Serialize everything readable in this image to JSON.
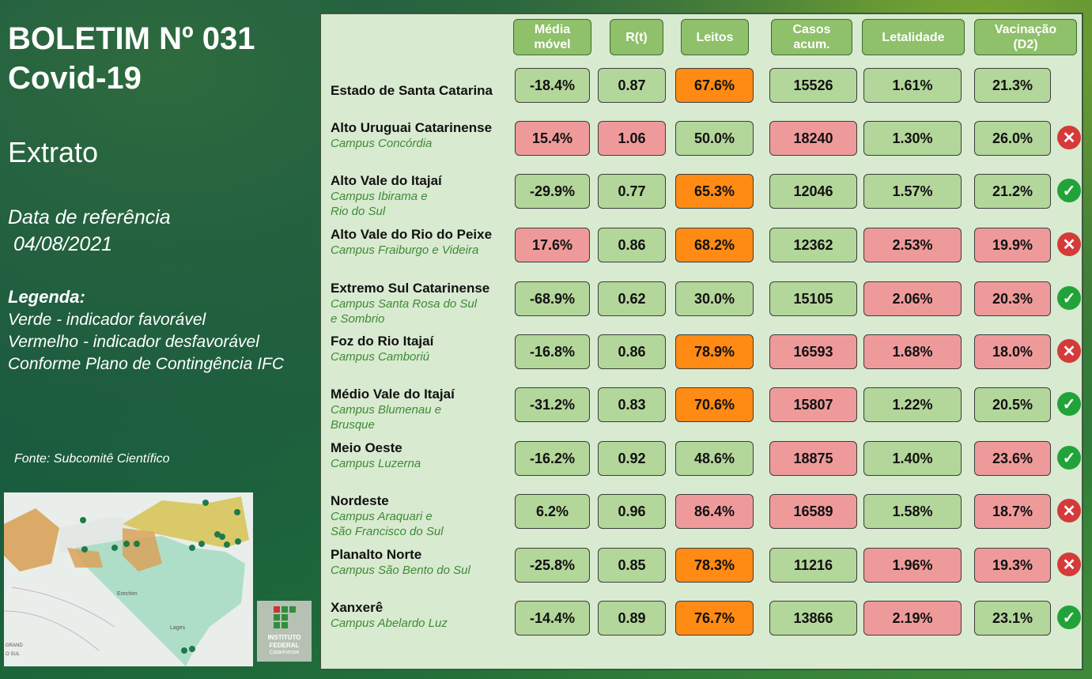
{
  "title_line1": "BOLETIM Nº 031",
  "title_line2": "Covid-19",
  "subtitle": "Extrato",
  "ref_label": "Data de referência",
  "ref_date": " 04/08/2021",
  "legend": {
    "title": "Legenda:",
    "line1": "Verde - indicador favorável",
    "line2": "Vermelho - indicador desfavorável",
    "line3": "Conforme Plano de Contingência IFC"
  },
  "source": "Fonte: Subcomitê Científico",
  "logo": {
    "line1": "INSTITUTO",
    "line2": "FEDERAL",
    "line3": "Catarinense"
  },
  "map_labels": {
    "city1": "Erechim",
    "city2": "Lages",
    "city3": "GRAND",
    "city4": "O SUL"
  },
  "headers": [
    "Média\nmóvel",
    "R(t)",
    "Leitos",
    "Casos\nacum.",
    "Letalidade",
    "Vacinação\n(D2)"
  ],
  "colors": {
    "green": "#b3d69a",
    "red": "#ef9a9a",
    "orange": "#ff8a14",
    "header": "#8fc06a"
  },
  "rows": [
    {
      "name": "Estado de Santa Catarina",
      "campus": "",
      "values": [
        "-18.4%",
        "0.87",
        "67.6%",
        "15526",
        "1.61%",
        "21.3%"
      ],
      "colors": [
        "g",
        "g",
        "o",
        "g",
        "g",
        "g"
      ],
      "status": ""
    },
    {
      "name": "Alto Uruguai Catarinense",
      "campus": "Campus Concórdia",
      "values": [
        "15.4%",
        "1.06",
        "50.0%",
        "18240",
        "1.30%",
        "26.0%"
      ],
      "colors": [
        "r",
        "r",
        "g",
        "r",
        "g",
        "g"
      ],
      "status": "bad"
    },
    {
      "name": "Alto Vale do Itajaí",
      "campus": "Campus Ibirama e\nRio do Sul",
      "values": [
        "-29.9%",
        "0.77",
        "65.3%",
        "12046",
        "1.57%",
        "21.2%"
      ],
      "colors": [
        "g",
        "g",
        "o",
        "g",
        "g",
        "g"
      ],
      "status": "ok"
    },
    {
      "name": "Alto Vale do Rio do Peixe",
      "campus": "Campus Fraiburgo e Videira",
      "values": [
        "17.6%",
        "0.86",
        "68.2%",
        "12362",
        "2.53%",
        "19.9%"
      ],
      "colors": [
        "r",
        "g",
        "o",
        "g",
        "r",
        "r"
      ],
      "status": "bad"
    },
    {
      "name": "Extremo Sul Catarinense",
      "campus": "Campus Santa Rosa do Sul\ne Sombrio",
      "values": [
        "-68.9%",
        "0.62",
        "30.0%",
        "15105",
        "2.06%",
        "20.3%"
      ],
      "colors": [
        "g",
        "g",
        "g",
        "g",
        "r",
        "r"
      ],
      "status": "ok"
    },
    {
      "name": "Foz do Rio Itajaí",
      "campus": "Campus Camboriú",
      "values": [
        "-16.8%",
        "0.86",
        "78.9%",
        "16593",
        "1.68%",
        "18.0%"
      ],
      "colors": [
        "g",
        "g",
        "o",
        "r",
        "r",
        "r"
      ],
      "status": "bad"
    },
    {
      "name": "Médio Vale do Itajaí",
      "campus": "Campus Blumenau e\n Brusque",
      "values": [
        "-31.2%",
        "0.83",
        "70.6%",
        "15807",
        "1.22%",
        "20.5%"
      ],
      "colors": [
        "g",
        "g",
        "o",
        "r",
        "g",
        "g"
      ],
      "status": "ok"
    },
    {
      "name": "Meio Oeste",
      "campus": "Campus Luzerna",
      "values": [
        "-16.2%",
        "0.92",
        "48.6%",
        "18875",
        "1.40%",
        "23.6%"
      ],
      "colors": [
        "g",
        "g",
        "g",
        "r",
        "g",
        "r"
      ],
      "status": "ok"
    },
    {
      "name": "Nordeste",
      "campus": "Campus Araquari e\nSão Francisco do Sul",
      "values": [
        "6.2%",
        "0.96",
        "86.4%",
        "16589",
        "1.58%",
        "18.7%"
      ],
      "colors": [
        "g",
        "g",
        "r",
        "r",
        "g",
        "r"
      ],
      "status": "bad"
    },
    {
      "name": "Planalto Norte",
      "campus": "Campus São Bento do Sul",
      "values": [
        "-25.8%",
        "0.85",
        "78.3%",
        "11216",
        "1.96%",
        "19.3%"
      ],
      "colors": [
        "g",
        "g",
        "o",
        "g",
        "r",
        "r"
      ],
      "status": "bad"
    },
    {
      "name": "Xanxerê",
      "campus": "Campus Abelardo Luz",
      "values": [
        "-14.4%",
        "0.89",
        "76.7%",
        "13866",
        "2.19%",
        "23.1%"
      ],
      "colors": [
        "g",
        "g",
        "o",
        "g",
        "r",
        "g"
      ],
      "status": "ok"
    }
  ]
}
